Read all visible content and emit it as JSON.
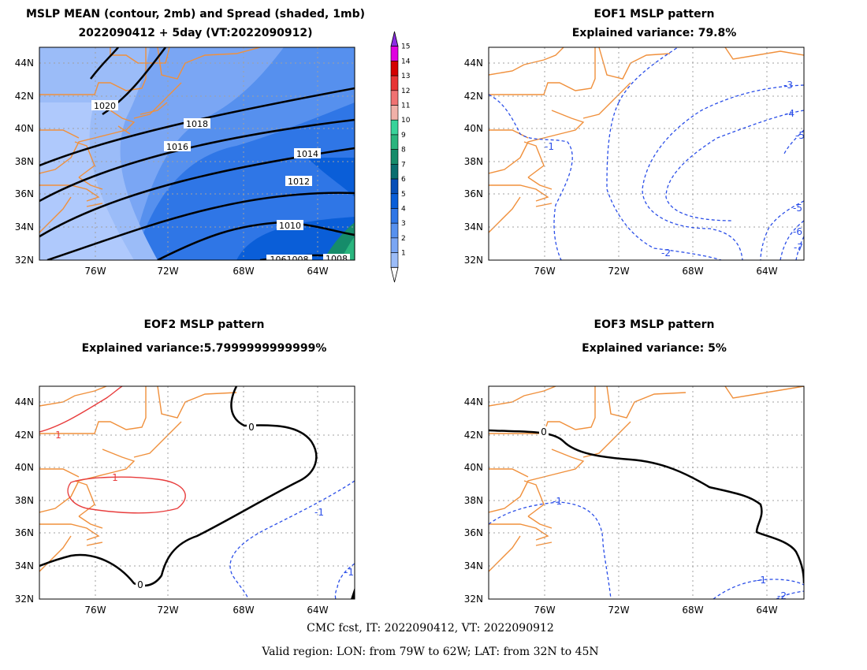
{
  "panels": {
    "mean": {
      "title_line1": "MSLP MEAN (contour, 2mb) and Spread (shaded, 1mb)",
      "title_line2": "2022090412 + 5day (VT:2022090912)",
      "contour_labels": [
        "1020",
        "1018",
        "1016",
        "1014",
        "1012",
        "1010",
        "1061008",
        "1008"
      ],
      "colorbar_labels": [
        "1",
        "2",
        "3",
        "4",
        "5",
        "6",
        "7",
        "8",
        "9",
        "10",
        "11",
        "12",
        "13",
        "14",
        "15"
      ],
      "colorbar_colors": [
        "#ffffff",
        "#bcd2ff",
        "#9bbcf8",
        "#7aa6f4",
        "#5690ee",
        "#2f76e6",
        "#0a5ed8",
        "#074fb8",
        "#0a6e70",
        "#168c6a",
        "#2ab57e",
        "#38d39a",
        "#f0b0a8",
        "#f07272",
        "#e83434",
        "#d40000",
        "#e000e0",
        "#8a2be2"
      ]
    },
    "eof1": {
      "title_line1": "EOF1 MSLP pattern",
      "title_line2": "Explained variance: 79.8%",
      "contour_labels": [
        "-1",
        "-2",
        "-3",
        "-4",
        "-5",
        "-5",
        "-6",
        "-7"
      ]
    },
    "eof2": {
      "title_line1": "EOF2 MSLP pattern",
      "title_line2": "Explained variance:5.7999999999999%",
      "contour_labels": [
        "1",
        "1",
        "0",
        "0",
        "-1",
        "-1"
      ]
    },
    "eof3": {
      "title_line1": "EOF3 MSLP pattern",
      "title_line2": "Explained variance: 5%",
      "contour_labels": [
        "0",
        "-1",
        "-1",
        "-2"
      ]
    }
  },
  "axes": {
    "lat_labels": [
      "44N",
      "42N",
      "40N",
      "38N",
      "36N",
      "34N",
      "32N"
    ],
    "lon_labels": [
      "76W",
      "72W",
      "68W",
      "64W"
    ]
  },
  "footer": {
    "line1": "CMC fcst, IT: 2022090412, VT: 2022090912",
    "line2": "Valid region: LON: from 79W to 62W; LAT: from 32N to 45N"
  },
  "colors": {
    "coast": "#f0903c",
    "grid": "#a0a0a0",
    "positive_contour": "#e83c3c",
    "negative_contour": "#2a4ee8",
    "zero_contour": "#000000"
  }
}
